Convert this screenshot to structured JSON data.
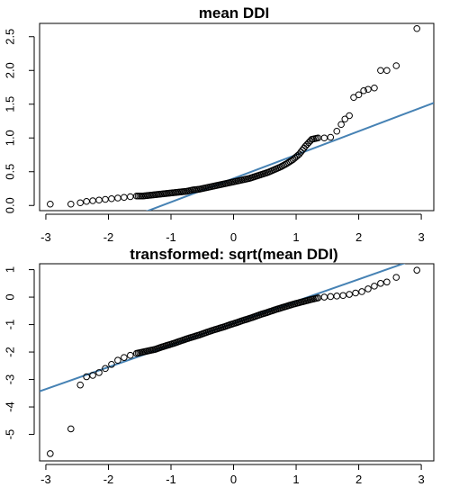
{
  "chart_data": [
    {
      "type": "scatter",
      "title": "mean DDI",
      "xlabel": "",
      "ylabel": "",
      "xlim": [
        -3.1,
        3.2
      ],
      "ylim": [
        -0.05,
        2.67
      ],
      "xticks": [
        "-3",
        "-2",
        "-1",
        "0",
        "1",
        "2",
        "3"
      ],
      "yticks": [
        "0.0",
        "0.5",
        "1.0",
        "1.5",
        "2.0",
        "2.5"
      ],
      "reference_line": {
        "color": "#4682B4",
        "intercept": 0.4,
        "slope": 0.35
      },
      "points": {
        "x": [
          -2.93,
          -2.6,
          -2.45,
          -2.35,
          -2.25,
          -2.15,
          -2.05,
          -1.95,
          -1.85,
          -1.75,
          -1.65,
          -1.55,
          -1.45,
          -1.35,
          -1.25,
          -1.15,
          -1.05,
          -0.95,
          -0.85,
          -0.75,
          -0.65,
          -0.55,
          -0.45,
          -0.35,
          -0.25,
          -0.15,
          -0.05,
          0.05,
          0.15,
          0.25,
          0.35,
          0.45,
          0.55,
          0.65,
          0.75,
          0.85,
          0.95,
          1.05,
          1.15,
          1.25,
          1.35,
          1.45,
          1.55,
          1.65,
          1.72,
          1.78,
          1.85,
          1.92,
          2.0,
          2.08,
          2.15,
          2.25,
          2.35,
          2.45,
          2.6,
          2.93
        ],
        "y": [
          0.02,
          0.02,
          0.04,
          0.06,
          0.07,
          0.08,
          0.09,
          0.1,
          0.11,
          0.12,
          0.13,
          0.14,
          0.14,
          0.15,
          0.16,
          0.17,
          0.18,
          0.19,
          0.2,
          0.21,
          0.23,
          0.24,
          0.26,
          0.28,
          0.3,
          0.32,
          0.34,
          0.36,
          0.38,
          0.4,
          0.43,
          0.46,
          0.49,
          0.53,
          0.57,
          0.62,
          0.68,
          0.76,
          0.88,
          0.98,
          1.0,
          1.0,
          1.01,
          1.1,
          1.2,
          1.28,
          1.33,
          1.6,
          1.64,
          1.7,
          1.72,
          1.74,
          2.0,
          2.0,
          2.07,
          2.62
        ]
      }
    },
    {
      "type": "scatter",
      "title": "transformed: sqrt(mean DDI)",
      "xlabel": "",
      "ylabel": "",
      "xlim": [
        -3.1,
        3.2
      ],
      "ylim": [
        -5.9,
        1.15
      ],
      "xticks": [
        "-3",
        "-2",
        "-1",
        "0",
        "1",
        "2",
        "3"
      ],
      "yticks": [
        "-5",
        "-4",
        "-3",
        "-2",
        "-1",
        "0",
        "1"
      ],
      "reference_line": {
        "color": "#4682B4",
        "intercept": -0.95,
        "slope": 0.8
      },
      "points": {
        "x": [
          -2.93,
          -2.6,
          -2.45,
          -2.35,
          -2.25,
          -2.15,
          -2.05,
          -1.95,
          -1.85,
          -1.75,
          -1.65,
          -1.55,
          -1.45,
          -1.35,
          -1.25,
          -1.15,
          -1.05,
          -0.95,
          -0.85,
          -0.75,
          -0.65,
          -0.55,
          -0.45,
          -0.35,
          -0.25,
          -0.15,
          -0.05,
          0.05,
          0.15,
          0.25,
          0.35,
          0.45,
          0.55,
          0.65,
          0.75,
          0.85,
          0.95,
          1.05,
          1.15,
          1.25,
          1.35,
          1.45,
          1.55,
          1.65,
          1.75,
          1.85,
          1.95,
          2.05,
          2.15,
          2.25,
          2.35,
          2.45,
          2.6,
          2.93
        ],
        "y": [
          -5.7,
          -4.8,
          -3.2,
          -2.9,
          -2.85,
          -2.75,
          -2.6,
          -2.45,
          -2.3,
          -2.2,
          -2.12,
          -2.05,
          -2.0,
          -1.95,
          -1.9,
          -1.82,
          -1.75,
          -1.68,
          -1.6,
          -1.52,
          -1.45,
          -1.38,
          -1.3,
          -1.22,
          -1.15,
          -1.08,
          -1.0,
          -0.93,
          -0.85,
          -0.78,
          -0.7,
          -0.62,
          -0.55,
          -0.47,
          -0.4,
          -0.33,
          -0.26,
          -0.2,
          -0.14,
          -0.08,
          -0.03,
          0.0,
          0.02,
          0.04,
          0.06,
          0.1,
          0.15,
          0.2,
          0.3,
          0.4,
          0.5,
          0.55,
          0.72,
          0.98
        ]
      }
    }
  ]
}
